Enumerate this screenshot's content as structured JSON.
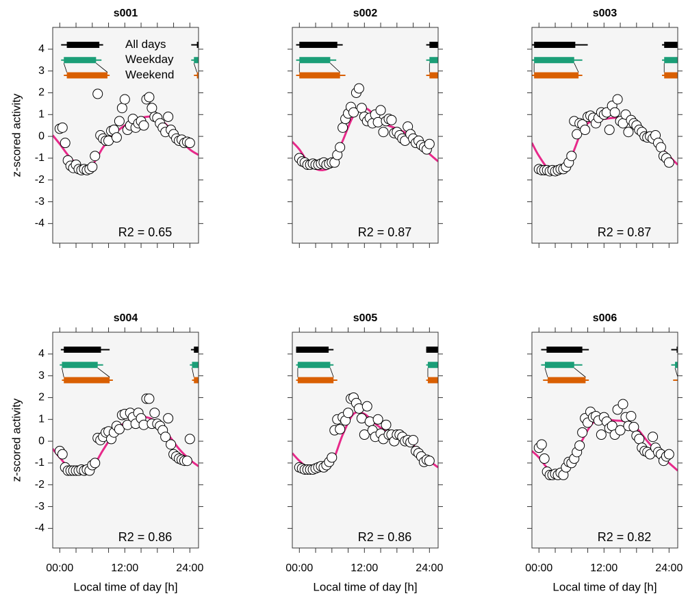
{
  "chart_data": [
    {
      "type": "scatter",
      "title": "s001",
      "annotation": "R2 = 0.65",
      "ylabel": "z-scored activity",
      "x": [
        0,
        0.5,
        1,
        1.5,
        2,
        2.5,
        3,
        3.5,
        4,
        4.5,
        5,
        5.5,
        6,
        6.5,
        7,
        7.5,
        8,
        8.5,
        9,
        9.5,
        10,
        10.5,
        11,
        11.5,
        12,
        12.5,
        13,
        13.5,
        14,
        14.5,
        15,
        15.5,
        16,
        16.5,
        17,
        17.5,
        18,
        18.5,
        19,
        19.5,
        20,
        20.5,
        21,
        21.5,
        22,
        22.5,
        23,
        23.5,
        24
      ],
      "values": [
        0.35,
        0.4,
        -0.3,
        -1.1,
        -1.35,
        -1.45,
        -1.3,
        -1.5,
        -1.55,
        -1.5,
        -1.55,
        -1.5,
        -1.4,
        -0.9,
        1.95,
        0.05,
        -0.1,
        -0.2,
        -0.2,
        0.25,
        0.3,
        -0.05,
        0.7,
        1.3,
        1.7,
        0.3,
        0.5,
        0.8,
        0.4,
        0.6,
        0.7,
        0.5,
        1.7,
        1.8,
        1.3,
        0.9,
        0.85,
        0.6,
        0.4,
        0.2,
        0.9,
        0.3,
        0.1,
        -0.1,
        -0.2,
        -0.15,
        -0.3,
        -0.25,
        -0.3
      ],
      "color": "#ffffff",
      "fit": {
        "x": [
          -1.3,
          0,
          2,
          4,
          6,
          8,
          10,
          12,
          14,
          16,
          18,
          20,
          22,
          24,
          25.6
        ],
        "values": [
          0.05,
          -0.35,
          -1.0,
          -1.35,
          -1.3,
          -0.5,
          0.1,
          0.5,
          0.75,
          0.9,
          0.85,
          0.45,
          -0.1,
          -0.6,
          -0.85
        ],
        "color": "#e7298a"
      },
      "sleep": [
        {
          "name": "All days",
          "color": "#000000",
          "whisker": [
            0.25,
            8.0
          ],
          "box": [
            1.3,
            7.3
          ]
        },
        {
          "name": "Weekday",
          "color": "#1b9e77",
          "whisker": [
            0.25,
            7.7
          ],
          "box": [
            0.75,
            6.7
          ]
        },
        {
          "name": "Weekend",
          "color": "#d95f02",
          "whisker": [
            0.75,
            9.2
          ],
          "box": [
            1.3,
            8.8
          ]
        }
      ],
      "xlim": [
        -1.3,
        25.6
      ],
      "ylim": [
        -4.9,
        5
      ],
      "yticks": [
        -4,
        -3,
        -2,
        -1,
        0,
        1,
        2,
        3,
        4
      ],
      "x_tick_marks": [
        0,
        3,
        6,
        9,
        12,
        15,
        18,
        21,
        24
      ]
    },
    {
      "type": "scatter",
      "title": "s002",
      "annotation": "R2 = 0.87",
      "x": [
        0,
        0.5,
        1,
        1.5,
        2,
        2.5,
        3,
        3.5,
        4,
        4.5,
        5,
        5.5,
        6,
        6.5,
        7,
        7.5,
        8,
        8.5,
        9,
        9.5,
        10,
        10.5,
        11,
        11.5,
        12,
        12.5,
        13,
        13.5,
        14,
        14.5,
        15,
        15.5,
        16,
        16.5,
        17,
        17.5,
        18,
        18.5,
        19,
        19.5,
        20,
        20.5,
        21,
        21.5,
        22,
        22.5,
        23,
        23.5,
        24
      ],
      "values": [
        -1.0,
        -1.15,
        -1.2,
        -1.3,
        -1.3,
        -1.25,
        -1.3,
        -1.3,
        -1.25,
        -1.2,
        -1.3,
        -1.25,
        -1.2,
        -1.2,
        -0.85,
        -0.5,
        0.4,
        0.8,
        1.05,
        1.35,
        1.1,
        2.0,
        2.2,
        1.3,
        0.9,
        0.7,
        0.85,
        0.6,
        1.0,
        0.65,
        1.2,
        0.2,
        0.7,
        0.8,
        0.75,
        0.15,
        0.2,
        0.05,
        -0.1,
        -0.2,
        0.45,
        0.1,
        -0.1,
        -0.3,
        -0.2,
        -0.4,
        -0.5,
        -0.6,
        -0.35
      ],
      "color": "#ffffff",
      "fit": {
        "x": [
          -1.3,
          0,
          2,
          4,
          6,
          8,
          10,
          12,
          14,
          16,
          18,
          20,
          22,
          24,
          25.6
        ],
        "values": [
          -0.25,
          -0.6,
          -1.3,
          -1.55,
          -1.3,
          -0.2,
          0.95,
          1.3,
          0.95,
          0.55,
          0.35,
          0.1,
          -0.3,
          -0.8,
          -1.15
        ],
        "color": "#e7298a"
      },
      "sleep": [
        {
          "color": "#000000",
          "whisker": [
            -0.6,
            8.0
          ],
          "box": [
            0,
            7.0
          ]
        },
        {
          "color": "#1b9e77",
          "whisker": [
            -0.6,
            6.8
          ],
          "box": [
            0,
            5.7
          ]
        },
        {
          "color": "#d95f02",
          "whisker": [
            -0.6,
            8.5
          ],
          "box": [
            0,
            7.5
          ]
        }
      ],
      "xlim": [
        -1.3,
        25.6
      ],
      "ylim": [
        -4.9,
        5
      ],
      "y_tick_marks": [
        -4,
        -3,
        -2,
        -1,
        0,
        1,
        2,
        3,
        4
      ],
      "x_tick_marks": [
        0,
        3,
        6,
        9,
        12,
        15,
        18,
        21,
        24
      ]
    },
    {
      "type": "scatter",
      "title": "s003",
      "annotation": "R2 = 0.87",
      "x": [
        0,
        0.5,
        1,
        1.5,
        2,
        2.5,
        3,
        3.5,
        4,
        4.5,
        5,
        5.5,
        6,
        6.5,
        7,
        7.5,
        8,
        8.5,
        9,
        9.5,
        10,
        10.5,
        11,
        11.5,
        12,
        12.5,
        13,
        13.5,
        14,
        14.5,
        15,
        15.5,
        16,
        16.5,
        17,
        17.5,
        18,
        18.5,
        19,
        19.5,
        20,
        20.5,
        21,
        21.5,
        22,
        22.5,
        23,
        23.5,
        24
      ],
      "values": [
        -1.5,
        -1.55,
        -1.55,
        -1.55,
        -1.6,
        -1.55,
        -1.6,
        -1.55,
        -1.5,
        -1.5,
        -1.4,
        -1.2,
        -0.9,
        0.7,
        0.1,
        0.6,
        0.55,
        0.3,
        0.9,
        0.95,
        0.85,
        0.6,
        0.85,
        1.1,
        1.0,
        1.1,
        0.3,
        1.4,
        1.1,
        1.7,
        0.7,
        0.6,
        1.0,
        0.2,
        0.75,
        0.6,
        0.5,
        0.3,
        0.2,
        0.0,
        -0.05,
        0.0,
        -0.1,
        0.05,
        -0.3,
        -0.5,
        -0.9,
        -1.0,
        -1.2
      ],
      "color": "#ffffff",
      "fit": {
        "x": [
          -1.3,
          0,
          2,
          4,
          6,
          8,
          10,
          12,
          14,
          16,
          18,
          20,
          22,
          24,
          25.6
        ],
        "values": [
          -0.3,
          -0.9,
          -1.55,
          -1.55,
          -0.9,
          0.3,
          0.75,
          0.8,
          0.85,
          0.85,
          0.6,
          0.1,
          -0.4,
          -0.9,
          -1.3
        ],
        "color": "#e7298a"
      },
      "sleep": [
        {
          "color": "#000000",
          "whisker": [
            -1.3,
            9.0
          ],
          "box": [
            -0.9,
            6.7
          ]
        },
        {
          "color": "#1b9e77",
          "whisker": [
            -1.3,
            8.0
          ],
          "box": [
            -0.9,
            6.5
          ]
        },
        {
          "color": "#d95f02",
          "whisker": [
            -1.3,
            8.0
          ],
          "box": [
            -0.9,
            7.3
          ]
        }
      ],
      "xlim": [
        -1.3,
        25.6
      ],
      "ylim": [
        -4.9,
        5
      ],
      "y_tick_marks": [
        -4,
        -3,
        -2,
        -1,
        0,
        1,
        2,
        3,
        4
      ],
      "x_tick_marks": [
        0,
        3,
        6,
        9,
        12,
        15,
        18,
        21,
        24
      ]
    },
    {
      "type": "scatter",
      "title": "s004",
      "annotation": "R2 = 0.86",
      "ylabel": "z-scored activity",
      "xlabel": "Local time of day [h]",
      "x": [
        0,
        0.5,
        1,
        1.5,
        2,
        2.5,
        3,
        3.5,
        4,
        4.5,
        5,
        5.5,
        6,
        6.5,
        7,
        7.5,
        8,
        8.5,
        9,
        9.5,
        10,
        10.5,
        11,
        11.5,
        12,
        12.5,
        13,
        13.5,
        14,
        14.5,
        15,
        15.5,
        16,
        16.5,
        17,
        17.5,
        18,
        18.5,
        19,
        19.5,
        20,
        20.5,
        21,
        21.5,
        22,
        22.5,
        23,
        23.5,
        24
      ],
      "values": [
        -0.45,
        -0.6,
        -1.2,
        -1.35,
        -1.35,
        -1.35,
        -1.35,
        -1.35,
        -1.3,
        -1.35,
        -1.3,
        -1.35,
        -1.1,
        -1.0,
        0.15,
        0.05,
        0.2,
        0.4,
        0.45,
        0.1,
        0.4,
        0.7,
        0.55,
        1.2,
        1.25,
        0.75,
        1.3,
        1.1,
        0.8,
        1.3,
        1.05,
        0.75,
        1.95,
        1.95,
        0.8,
        1.3,
        0.8,
        0.7,
        0.5,
        0.2,
        1.05,
        -0.15,
        -0.6,
        -0.7,
        -0.8,
        -0.85,
        -0.9,
        -0.9,
        0.1
      ],
      "color": "#ffffff",
      "fit": {
        "x": [
          -1.3,
          0,
          2,
          4,
          6,
          8,
          10,
          12,
          14,
          16,
          18,
          20,
          22,
          24,
          25.6
        ],
        "values": [
          -0.35,
          -0.75,
          -1.3,
          -1.45,
          -1.2,
          -0.4,
          0.35,
          0.85,
          1.05,
          1.1,
          0.85,
          0.3,
          -0.35,
          -0.85,
          -1.15
        ],
        "color": "#e7298a"
      },
      "sleep": [
        {
          "color": "#000000",
          "whisker": [
            0.2,
            9.2
          ],
          "box": [
            0.75,
            7.6
          ]
        },
        {
          "color": "#1b9e77",
          "whisker": [
            0,
            8.0
          ],
          "box": [
            0.4,
            7.0
          ]
        },
        {
          "color": "#d95f02",
          "whisker": [
            0.4,
            9.8
          ],
          "box": [
            0.75,
            9.2
          ]
        }
      ],
      "xlim": [
        -1.3,
        25.6
      ],
      "ylim": [
        -4.9,
        5
      ],
      "yticks": [
        -4,
        -3,
        -2,
        -1,
        0,
        1,
        2,
        3,
        4
      ],
      "xticks": [
        {
          "value": 0,
          "label": "00:00"
        },
        {
          "value": 12,
          "label": "12:00"
        },
        {
          "value": 24,
          "label": "24:00"
        }
      ],
      "x_tick_marks": [
        3,
        6,
        9,
        15,
        18,
        21
      ]
    },
    {
      "type": "scatter",
      "title": "s005",
      "annotation": "R2 = 0.86",
      "xlabel": "Local time of day [h]",
      "x": [
        0,
        0.5,
        1,
        1.5,
        2,
        2.5,
        3,
        3.5,
        4,
        4.5,
        5,
        5.5,
        6,
        6.5,
        7,
        7.5,
        8,
        8.5,
        9,
        9.5,
        10,
        10.5,
        11,
        11.5,
        12,
        12.5,
        13,
        13.5,
        14,
        14.5,
        15,
        15.5,
        16,
        16.5,
        17,
        17.5,
        18,
        18.5,
        19,
        19.5,
        20,
        20.5,
        21,
        21.5,
        22,
        22.5,
        23,
        23.5,
        24
      ],
      "values": [
        -1.2,
        -1.25,
        -1.3,
        -1.3,
        -1.3,
        -1.3,
        -1.25,
        -1.2,
        -1.15,
        -1.2,
        -1.1,
        -0.95,
        -0.75,
        0.5,
        1.0,
        0.55,
        1.1,
        0.95,
        1.3,
        1.95,
        2.0,
        1.75,
        1.5,
        1.05,
        0.3,
        1.6,
        0.9,
        0.5,
        0.2,
        1.0,
        0.35,
        0.1,
        0.75,
        0.3,
        0.3,
        0.0,
        0.3,
        0.3,
        0.2,
        0.0,
        0.05,
        -0.05,
        0.05,
        -0.45,
        -0.55,
        -0.7,
        -0.95,
        -0.85,
        -0.9
      ],
      "color": "#ffffff",
      "fit": {
        "x": [
          -1.3,
          0,
          2,
          4,
          6,
          8,
          10,
          12,
          14,
          16,
          18,
          20,
          22,
          24,
          25.6
        ],
        "values": [
          -0.55,
          -0.9,
          -1.3,
          -1.35,
          -1.0,
          0.3,
          1.25,
          1.25,
          0.8,
          0.45,
          0.2,
          0.0,
          -0.4,
          -0.9,
          -1.2
        ],
        "color": "#e7298a"
      },
      "sleep": [
        {
          "color": "#000000",
          "whisker": [
            -0.6,
            6.3
          ],
          "box": [
            -0.6,
            5.4
          ]
        },
        {
          "color": "#1b9e77",
          "whisker": [
            -0.6,
            6.3
          ],
          "box": [
            -0.3,
            5.7
          ]
        },
        {
          "color": "#d95f02",
          "whisker": [
            -0.6,
            7.0
          ],
          "box": [
            -0.3,
            6.3
          ]
        }
      ],
      "xlim": [
        -1.3,
        25.6
      ],
      "ylim": [
        -4.9,
        5
      ],
      "y_tick_marks": [
        -4,
        -3,
        -2,
        -1,
        0,
        1,
        2,
        3,
        4
      ],
      "xticks": [
        {
          "value": 0,
          "label": "00:00"
        },
        {
          "value": 12,
          "label": "12:00"
        },
        {
          "value": 24,
          "label": "24:00"
        }
      ],
      "x_tick_marks": [
        3,
        6,
        9,
        15,
        18,
        21
      ]
    },
    {
      "type": "scatter",
      "title": "s006",
      "annotation": "R2 = 0.82",
      "xlabel": "Local time of day [h]",
      "x": [
        0,
        0.5,
        1,
        1.5,
        2,
        2.5,
        3,
        3.5,
        4,
        4.5,
        5,
        5.5,
        6,
        6.5,
        7,
        7.5,
        8,
        8.5,
        9,
        9.5,
        10,
        10.5,
        11,
        11.5,
        12,
        12.5,
        13,
        13.5,
        14,
        14.5,
        15,
        15.5,
        16,
        16.5,
        17,
        17.5,
        18,
        18.5,
        19,
        19.5,
        20,
        20.5,
        21,
        21.5,
        22,
        22.5,
        23,
        23.5,
        24
      ],
      "values": [
        -0.3,
        -0.15,
        -0.8,
        -1.4,
        -1.55,
        -1.55,
        -1.5,
        -1.55,
        -1.45,
        -1.55,
        -1.2,
        -0.95,
        -1.0,
        -0.8,
        -0.5,
        -0.2,
        0.4,
        1.05,
        0.85,
        1.35,
        1.1,
        1.15,
        0.95,
        0.3,
        1.1,
        0.9,
        0.6,
        0.7,
        0.3,
        1.45,
        0.5,
        1.7,
        1.1,
        0.7,
        1.15,
        0.65,
        0.25,
        0.1,
        -0.3,
        -0.45,
        -0.5,
        -0.6,
        0.2,
        -0.3,
        -0.5,
        -0.6,
        -0.9,
        -0.7,
        -0.6
      ],
      "color": "#ffffff",
      "fit": {
        "x": [
          -1.3,
          0,
          2,
          4,
          6,
          8,
          10,
          12,
          14,
          16,
          18,
          20,
          22,
          24,
          25.6
        ],
        "values": [
          -0.45,
          -0.75,
          -1.35,
          -1.55,
          -1.05,
          0.05,
          0.85,
          1.0,
          0.95,
          0.9,
          0.6,
          0.0,
          -0.55,
          -1.0,
          -1.35
        ],
        "color": "#e7298a"
      },
      "sleep": [
        {
          "color": "#000000",
          "whisker": [
            0.4,
            9.2
          ],
          "box": [
            1.4,
            8.0
          ]
        },
        {
          "color": "#1b9e77",
          "whisker": [
            0.4,
            8.0
          ],
          "box": [
            1.1,
            6.5
          ]
        },
        {
          "color": "#d95f02",
          "whisker": [
            0.75,
            9.2
          ],
          "box": [
            1.6,
            8.6
          ]
        }
      ],
      "xlim": [
        -1.3,
        25.6
      ],
      "ylim": [
        -4.9,
        5
      ],
      "y_tick_marks": [
        -4,
        -3,
        -2,
        -1,
        0,
        1,
        2,
        3,
        4
      ],
      "xticks": [
        {
          "value": 0,
          "label": "00:00"
        },
        {
          "value": 12,
          "label": "12:00"
        },
        {
          "value": 24,
          "label": "24:00"
        }
      ],
      "x_tick_marks": [
        3,
        6,
        9,
        15,
        18,
        21
      ]
    }
  ]
}
